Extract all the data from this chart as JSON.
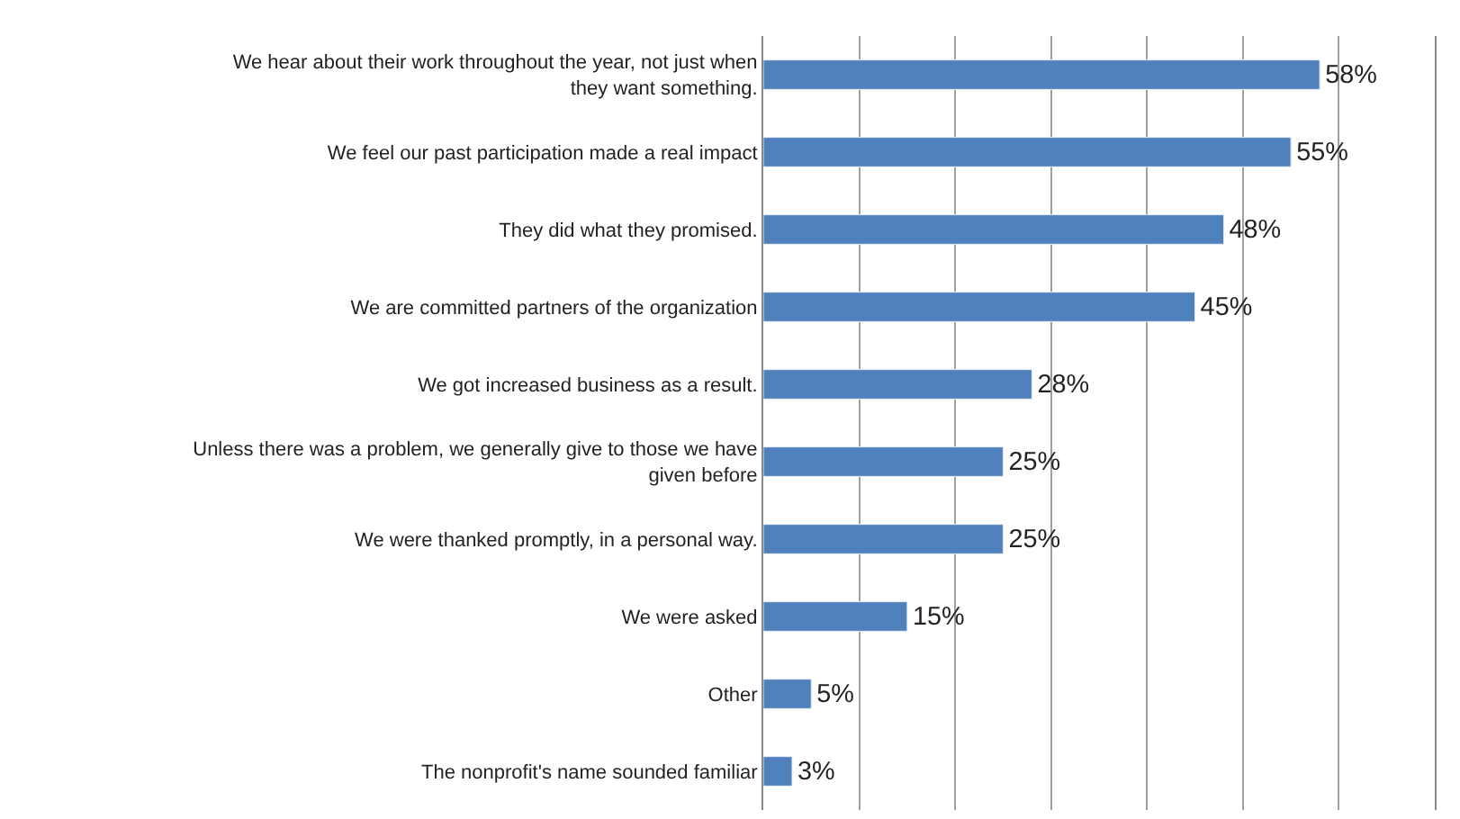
{
  "chart_data": {
    "type": "bar",
    "orientation": "horizontal",
    "categories": [
      "We hear about their work throughout the year, not just when they want something.",
      "We feel our past participation made a real impact",
      "They did what they promised.",
      "We are committed partners of the organization",
      "We got increased business as a result.",
      "Unless there was a problem, we generally give to those we have given before",
      "We were thanked promptly, in a personal way.",
      "We were asked",
      "Other",
      "The nonprofit's name sounded familiar"
    ],
    "values": [
      58,
      55,
      48,
      45,
      28,
      25,
      25,
      15,
      5,
      3
    ],
    "value_labels": [
      "58%",
      "55%",
      "48%",
      "45%",
      "28%",
      "25%",
      "25%",
      "15%",
      "5%",
      "3%"
    ],
    "color": "#4f81bd",
    "xlim": [
      0,
      70
    ],
    "xticks": [
      {
        "value": 0,
        "label": null
      },
      {
        "value": 10,
        "label": null
      },
      {
        "value": 20,
        "label": null
      },
      {
        "value": 30,
        "label": null
      },
      {
        "value": 40,
        "label": null
      },
      {
        "value": 50,
        "label": null
      },
      {
        "value": 60,
        "label": null
      }
    ],
    "grid": "x",
    "tick_labels": "y"
  }
}
